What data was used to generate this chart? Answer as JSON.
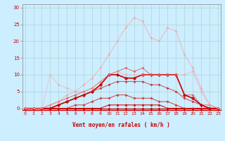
{
  "xlabel": "Vent moyen/en rafales ( km/h )",
  "xticks": [
    0,
    1,
    2,
    3,
    4,
    5,
    6,
    7,
    8,
    9,
    10,
    11,
    12,
    13,
    14,
    15,
    16,
    17,
    18,
    19,
    20,
    21,
    22,
    23
  ],
  "yticks": [
    0,
    5,
    10,
    15,
    20,
    25,
    30
  ],
  "xlim": [
    -0.3,
    23.3
  ],
  "ylim": [
    -0.5,
    31
  ],
  "bg_color": "#cceeff",
  "grid_color": "#aacccc",
  "series": [
    {
      "x": [
        0,
        1,
        2,
        3,
        4,
        5,
        6,
        7,
        8,
        9,
        10,
        11,
        12,
        13,
        14,
        15,
        16,
        17,
        18,
        19,
        20,
        21,
        22,
        23
      ],
      "y": [
        0,
        0,
        0,
        0,
        0,
        0,
        0,
        0,
        0,
        0,
        0,
        0,
        0,
        0,
        0,
        0,
        0,
        0,
        0,
        0,
        0,
        0,
        0,
        0
      ],
      "color": "#cc0000",
      "alpha": 1.0,
      "linewidth": 0.8,
      "markersize": 1.8
    },
    {
      "x": [
        0,
        1,
        2,
        3,
        4,
        5,
        6,
        7,
        8,
        9,
        10,
        11,
        12,
        13,
        14,
        15,
        16,
        17,
        18,
        19,
        20,
        21,
        22,
        23
      ],
      "y": [
        0,
        0,
        0,
        0,
        0,
        0,
        0,
        0,
        0,
        0,
        1,
        1,
        1,
        1,
        1,
        1,
        1,
        0,
        0,
        0,
        0,
        0,
        0,
        0
      ],
      "color": "#cc0000",
      "alpha": 0.9,
      "linewidth": 0.8,
      "markersize": 1.8
    },
    {
      "x": [
        0,
        1,
        2,
        3,
        4,
        5,
        6,
        7,
        8,
        9,
        10,
        11,
        12,
        13,
        14,
        15,
        16,
        17,
        18,
        19,
        20,
        21,
        22,
        23
      ],
      "y": [
        0,
        0,
        0,
        0,
        0,
        0,
        1,
        1,
        2,
        3,
        3,
        4,
        4,
        3,
        3,
        3,
        2,
        2,
        1,
        0,
        0,
        0,
        0,
        0
      ],
      "color": "#cc2222",
      "alpha": 0.75,
      "linewidth": 0.8,
      "markersize": 1.8
    },
    {
      "x": [
        0,
        1,
        2,
        3,
        4,
        5,
        6,
        7,
        8,
        9,
        10,
        11,
        12,
        13,
        14,
        15,
        16,
        17,
        18,
        19,
        20,
        21,
        22,
        23
      ],
      "y": [
        0,
        0,
        0,
        0,
        1,
        2,
        3,
        4,
        5,
        6,
        7,
        8,
        8,
        8,
        8,
        7,
        7,
        6,
        5,
        3,
        2,
        1,
        0,
        0
      ],
      "color": "#cc0000",
      "alpha": 0.6,
      "linewidth": 0.8,
      "markersize": 1.8
    },
    {
      "x": [
        0,
        1,
        2,
        3,
        4,
        5,
        6,
        7,
        8,
        9,
        10,
        11,
        12,
        13,
        14,
        15,
        16,
        17,
        18,
        19,
        20,
        21,
        22,
        23
      ],
      "y": [
        0,
        0,
        0,
        1,
        2,
        3,
        4,
        5,
        6,
        8,
        10,
        11,
        12,
        11,
        12,
        10,
        10,
        10,
        10,
        4,
        4,
        1,
        1,
        0
      ],
      "color": "#dd4444",
      "alpha": 0.65,
      "linewidth": 0.8,
      "markersize": 1.8
    },
    {
      "x": [
        0,
        1,
        2,
        3,
        4,
        5,
        6,
        7,
        8,
        9,
        10,
        11,
        12,
        13,
        14,
        15,
        16,
        17,
        18,
        19,
        20,
        21,
        22,
        23
      ],
      "y": [
        0,
        0,
        0,
        0,
        1,
        2,
        3,
        4,
        5,
        7,
        10,
        10,
        9,
        9,
        10,
        10,
        10,
        10,
        10,
        4,
        3,
        1,
        0,
        0
      ],
      "color": "#cc0000",
      "alpha": 1.0,
      "linewidth": 1.2,
      "markersize": 2.5
    },
    {
      "x": [
        0,
        1,
        2,
        3,
        4,
        5,
        6,
        7,
        8,
        9,
        10,
        11,
        12,
        13,
        14,
        15,
        16,
        17,
        18,
        19,
        20,
        21,
        22,
        23
      ],
      "y": [
        0,
        0,
        0,
        1,
        2,
        4,
        5,
        7,
        9,
        12,
        16,
        20,
        24,
        27,
        26,
        21,
        20,
        24,
        23,
        16,
        12,
        6,
        1,
        0
      ],
      "color": "#ff9999",
      "alpha": 0.6,
      "linewidth": 0.8,
      "markersize": 1.8
    },
    {
      "x": [
        0,
        1,
        2,
        3,
        4,
        5,
        6,
        7,
        8,
        9,
        10,
        11,
        12,
        13,
        14,
        15,
        16,
        17,
        18,
        19,
        20,
        21,
        22,
        23
      ],
      "y": [
        0,
        0,
        0,
        10,
        7,
        6,
        5,
        5,
        6,
        8,
        10,
        11,
        10,
        10,
        10,
        10,
        10,
        10,
        10,
        10,
        11,
        5,
        1,
        0
      ],
      "color": "#ff9999",
      "alpha": 0.45,
      "linewidth": 0.8,
      "markersize": 1.8
    }
  ]
}
